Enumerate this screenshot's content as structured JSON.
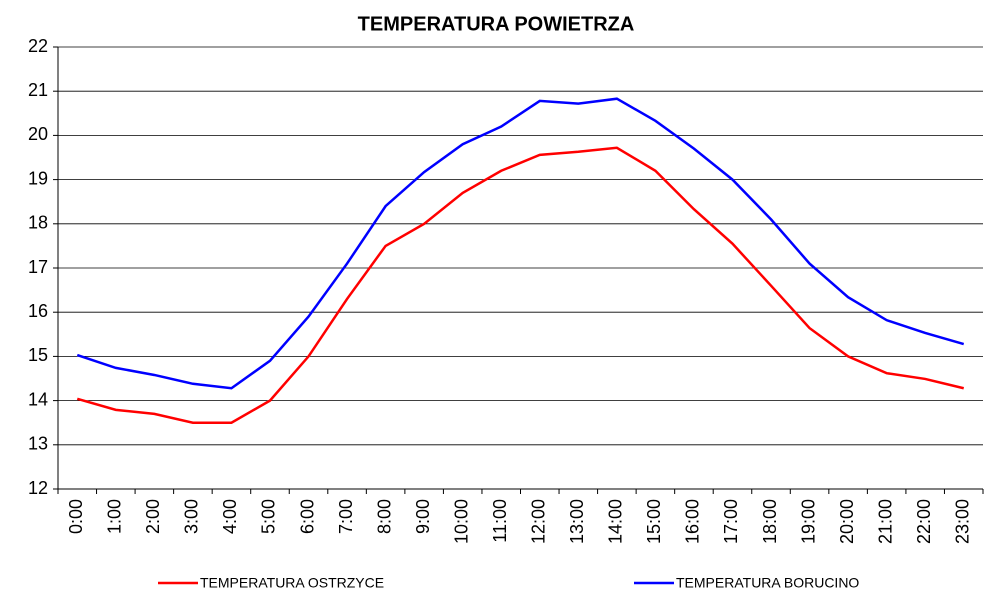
{
  "chart_data": {
    "type": "line",
    "title": "TEMPERATURA POWIETRZA",
    "categories": [
      "0:00",
      "1:00",
      "2:00",
      "3:00",
      "4:00",
      "5:00",
      "6:00",
      "7:00",
      "8:00",
      "9:00",
      "10:00",
      "11:00",
      "12:00",
      "13:00",
      "14:00",
      "15:00",
      "16:00",
      "17:00",
      "18:00",
      "19:00",
      "20:00",
      "21:00",
      "22:00",
      "23:00"
    ],
    "series": [
      {
        "name": "TEMPERATURA OSTRZYCE",
        "color": "#ff0000",
        "values": [
          14.04,
          13.79,
          13.7,
          13.5,
          13.5,
          14.0,
          15.0,
          16.3,
          17.5,
          18.0,
          18.7,
          19.2,
          19.56,
          19.63,
          19.72,
          19.2,
          18.33,
          17.55,
          16.6,
          15.64,
          15.0,
          14.62,
          14.49,
          14.28
        ]
      },
      {
        "name": "TEMPERATURA BORUCINO",
        "color": "#0000ff",
        "values": [
          15.03,
          14.74,
          14.58,
          14.38,
          14.28,
          14.9,
          15.9,
          17.1,
          18.4,
          19.17,
          19.8,
          20.2,
          20.78,
          20.72,
          20.83,
          20.33,
          19.7,
          19.0,
          18.1,
          17.1,
          16.34,
          15.82,
          15.53,
          15.28
        ]
      }
    ],
    "ylim": [
      12,
      22
    ],
    "yticks": [
      12,
      13,
      14,
      15,
      16,
      17,
      18,
      19,
      20,
      21,
      22
    ],
    "grid": true,
    "legend": "bottom"
  }
}
